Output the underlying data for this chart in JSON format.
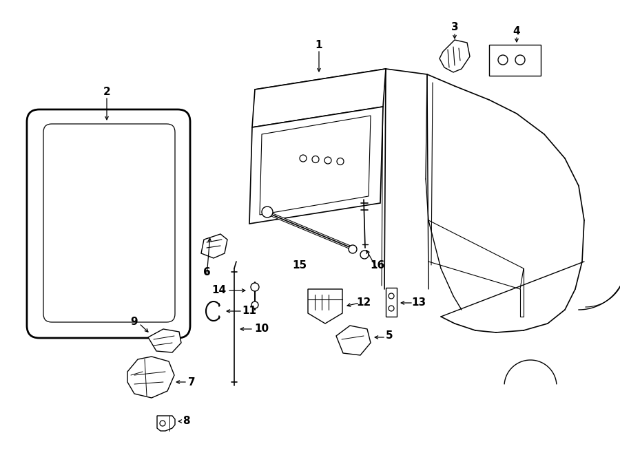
{
  "background_color": "#ffffff",
  "line_color": "#000000",
  "figsize": [
    9.0,
    6.61
  ],
  "dpi": 100,
  "lw": 1.0,
  "fontsize": 11
}
